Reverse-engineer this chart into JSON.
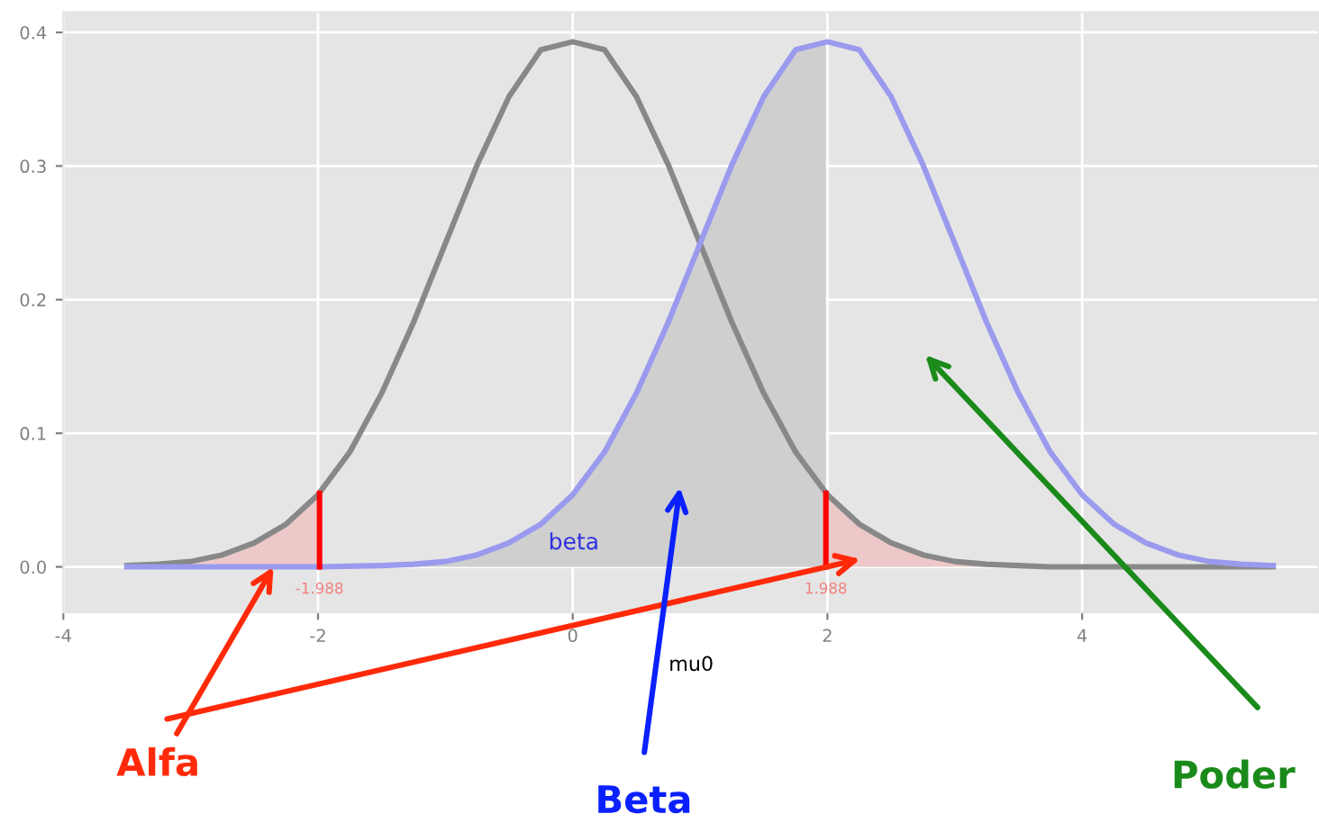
{
  "chart_data": {
    "type": "line",
    "xlabel": "mu0",
    "xlim": [
      -4,
      5.86
    ],
    "ylim": [
      -0.034,
      0.415
    ],
    "xticks": [
      -4,
      -2,
      0,
      2,
      4
    ],
    "yticks": [
      {
        "value": 0,
        "label": "0.0"
      },
      0.1,
      0.2,
      0.3,
      0.4
    ],
    "grid": true,
    "series": [
      {
        "type": "area",
        "color": "#cfcfcf",
        "x": [
          -3.5,
          -2,
          -1.5,
          -1.25,
          -1,
          -0.75,
          -0.5,
          -0.25,
          0,
          0.25,
          0.5,
          0.75,
          1,
          1.25,
          1.5,
          1.75,
          1.988
        ],
        "values": [
          0,
          0,
          0.001,
          0.002,
          0.004,
          0.009,
          0.018,
          0.032,
          0.054,
          0.086,
          0.13,
          0.183,
          0.242,
          0.301,
          0.352,
          0.387,
          0.393
        ]
      },
      {
        "type": "area",
        "color": "#ecc8c8",
        "x": [
          -3.5,
          -3.25,
          -3,
          -2.75,
          -2.5,
          -2.25,
          -1.988
        ],
        "values": [
          0.001,
          0.002,
          0.004,
          0.009,
          0.018,
          0.032,
          0.055
        ]
      },
      {
        "type": "area",
        "color": "#ecc8c8",
        "x": [
          1.988,
          2.25,
          2.5,
          2.75,
          3,
          3.25,
          3.5,
          3.75,
          4
        ],
        "values": [
          0.055,
          0.032,
          0.018,
          0.009,
          0.004,
          0.002,
          0.001,
          0,
          0
        ]
      },
      {
        "color": "#888888",
        "x": [
          -3.5,
          -3.25,
          -3,
          -2.75,
          -2.5,
          -2.25,
          -2,
          -1.75,
          -1.5,
          -1.25,
          -1,
          -0.75,
          -0.5,
          -0.25,
          0,
          0.25,
          0.5,
          0.75,
          1,
          1.25,
          1.5,
          1.75,
          2,
          2.25,
          2.5,
          2.75,
          3,
          3.25,
          3.5,
          3.75,
          4,
          4.5,
          5,
          5.5
        ],
        "values": [
          0.001,
          0.002,
          0.004,
          0.009,
          0.018,
          0.032,
          0.054,
          0.086,
          0.13,
          0.183,
          0.242,
          0.301,
          0.352,
          0.387,
          0.393,
          0.387,
          0.352,
          0.301,
          0.242,
          0.183,
          0.13,
          0.086,
          0.054,
          0.032,
          0.018,
          0.009,
          0.004,
          0.002,
          0.001,
          0,
          0,
          0,
          0,
          0
        ]
      },
      {
        "color": "#9a9aee",
        "x": [
          -3.5,
          -2,
          -1.5,
          -1.25,
          -1,
          -0.75,
          -0.5,
          -0.25,
          0,
          0.25,
          0.5,
          0.75,
          1,
          1.25,
          1.5,
          1.75,
          2,
          2.25,
          2.5,
          2.75,
          3,
          3.25,
          3.5,
          3.75,
          4,
          4.25,
          4.5,
          4.75,
          5,
          5.25,
          5.5
        ],
        "values": [
          0,
          0,
          0.001,
          0.002,
          0.004,
          0.009,
          0.018,
          0.032,
          0.054,
          0.086,
          0.13,
          0.183,
          0.242,
          0.301,
          0.352,
          0.387,
          0.393,
          0.387,
          0.352,
          0.301,
          0.242,
          0.183,
          0.13,
          0.086,
          0.054,
          0.032,
          0.018,
          0.009,
          0.004,
          0.002,
          0.001
        ]
      },
      {
        "color": "#ff0000",
        "x": [
          -1.988,
          -1.988
        ],
        "values": [
          0,
          0.055
        ]
      },
      {
        "color": "#ff0000",
        "x": [
          1.988,
          1.988
        ],
        "values": [
          0,
          0.055
        ]
      }
    ],
    "annotations": [
      {
        "text": "-1.988",
        "x": -1.988,
        "y": 0
      },
      {
        "text": "1.988",
        "x": 1.988,
        "y": 0
      },
      "beta",
      {
        "text": "Alfa",
        "x": -2.35,
        "y": 0
      },
      "Beta",
      "Poder"
    ]
  }
}
